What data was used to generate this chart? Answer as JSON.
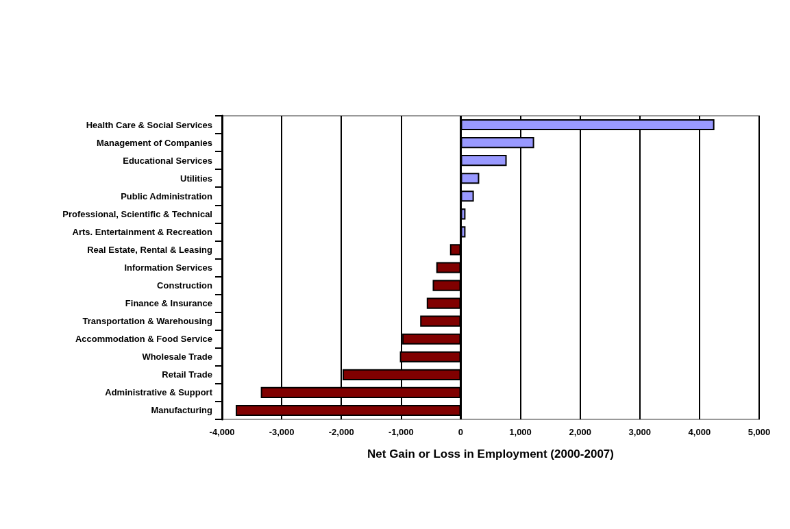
{
  "chart_data": {
    "type": "bar",
    "orientation": "horizontal",
    "xlabel": "Net Gain or Loss in Employment (2000-2007)",
    "categories": [
      "Health Care & Social Services",
      "Management of Companies",
      "Educational Services",
      "Utilities",
      "Public Administration",
      "Professional, Scientific & Technical",
      "Arts. Entertainment & Recreation",
      "Real Estate, Rental & Leasing",
      "Information Services",
      "Construction",
      "Finance & Insurance",
      "Transportation & Warehousing",
      "Accommodation & Food Service",
      "Wholesale Trade",
      "Retail Trade",
      "Administrative & Support",
      "Manufacturing"
    ],
    "values": [
      4250,
      1230,
      770,
      310,
      220,
      80,
      80,
      -180,
      -410,
      -470,
      -570,
      -680,
      -980,
      -1020,
      -1980,
      -3350,
      -3770
    ],
    "colors": [
      "#9999ff",
      "#9999ff",
      "#9999ff",
      "#9999ff",
      "#9999ff",
      "#9999ff",
      "#9999ff",
      "#800000",
      "#800000",
      "#800000",
      "#800000",
      "#800000",
      "#800000",
      "#800000",
      "#800000",
      "#800000",
      "#800000"
    ],
    "xlim": [
      -4000,
      5000
    ],
    "xticks": [
      {
        "value": -4000,
        "label": "-4,000"
      },
      {
        "value": -3000,
        "label": "-3,000"
      },
      {
        "value": -2000,
        "label": "-2,000"
      },
      {
        "value": -1000,
        "label": "-1,000"
      },
      0,
      {
        "value": 1000,
        "label": "1,000"
      },
      {
        "value": 2000,
        "label": "2,000"
      },
      {
        "value": 3000,
        "label": "3,000"
      },
      {
        "value": 4000,
        "label": "4,000"
      },
      {
        "value": 5000,
        "label": "5,000"
      }
    ],
    "grid": "x"
  }
}
